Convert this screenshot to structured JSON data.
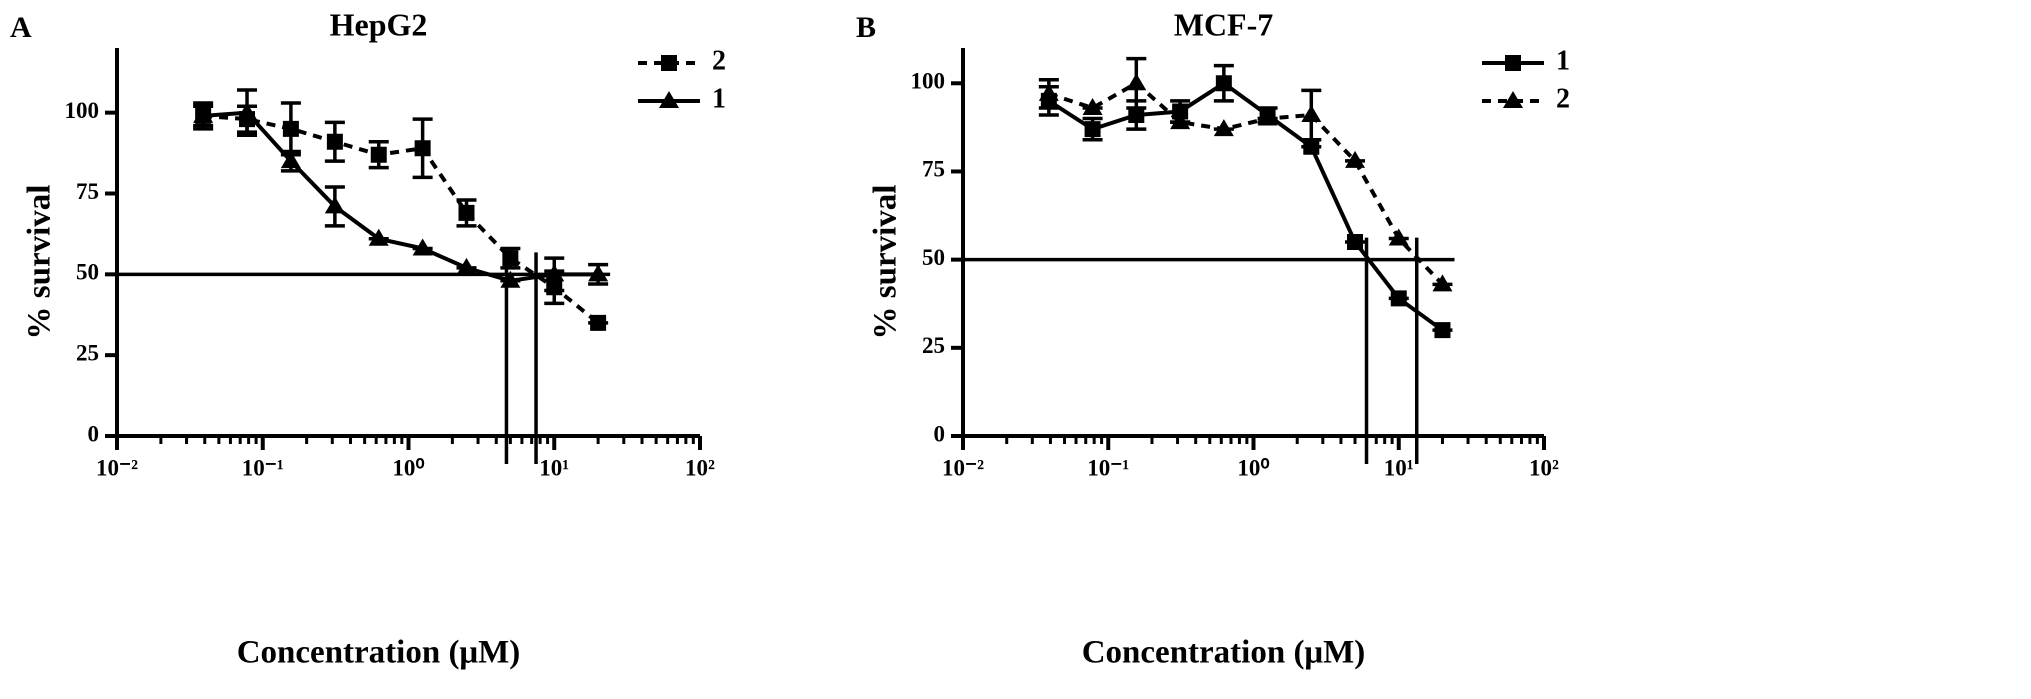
{
  "chart_data": [
    {
      "type": "line",
      "panel": "A",
      "title": "HepG2",
      "xlabel": "Concentration (μM)",
      "ylabel": "% survival",
      "log_x": true,
      "xlim": [
        0.01,
        100
      ],
      "ylim": [
        0,
        120
      ],
      "xticks": [
        {
          "value": 0.01,
          "label": "10⁻²"
        },
        {
          "value": 0.1,
          "label": "10⁻¹"
        },
        {
          "value": 1,
          "label": "10⁰"
        },
        {
          "value": 10,
          "label": "10¹"
        },
        {
          "value": 100,
          "label": "10²"
        }
      ],
      "yticks": [
        0,
        25,
        50,
        75,
        100
      ],
      "legend": "upper right",
      "x": [
        0.039,
        0.078,
        0.156,
        0.3125,
        0.625,
        1.25,
        2.5,
        5,
        10,
        20
      ],
      "series": [
        {
          "name": "2",
          "color": "#000000",
          "dashed": true,
          "marker": "square",
          "values": [
            99,
            98,
            95,
            91,
            87,
            89,
            69,
            55,
            46,
            35
          ],
          "errors": [
            4,
            4,
            8,
            6,
            4,
            9,
            4,
            3,
            5,
            0
          ]
        },
        {
          "name": "1",
          "color": "#000000",
          "dashed": false,
          "marker": "triangle",
          "values": [
            99,
            100,
            85,
            71,
            61,
            58,
            52,
            48,
            50,
            50
          ],
          "errors": [
            3,
            7,
            3,
            6,
            0,
            0,
            0,
            0,
            5,
            3
          ]
        }
      ],
      "reference_lines": {
        "y": 50,
        "x": [
          4.7,
          7.5
        ]
      }
    },
    {
      "type": "line",
      "panel": "B",
      "title": "MCF-7",
      "xlabel": "Concentration (μM)",
      "ylabel": "% survival",
      "log_x": true,
      "xlim": [
        0.01,
        100
      ],
      "ylim": [
        0,
        110
      ],
      "xticks": [
        {
          "value": 0.01,
          "label": "10⁻²"
        },
        {
          "value": 0.1,
          "label": "10⁻¹"
        },
        {
          "value": 1,
          "label": "10⁰"
        },
        {
          "value": 10,
          "label": "10¹"
        },
        {
          "value": 100,
          "label": "10²"
        }
      ],
      "yticks": [
        0,
        25,
        50,
        75,
        100
      ],
      "legend": "upper right",
      "x": [
        0.039,
        0.078,
        0.156,
        0.3125,
        0.625,
        1.25,
        2.5,
        5,
        10,
        20
      ],
      "series": [
        {
          "name": "1",
          "color": "#000000",
          "dashed": false,
          "marker": "square",
          "values": [
            95,
            87,
            91,
            92,
            100,
            91,
            82,
            55,
            39,
            30
          ],
          "errors": [
            4,
            3,
            4,
            3,
            5,
            2,
            0,
            0,
            0,
            0
          ]
        },
        {
          "name": "2",
          "color": "#000000",
          "dashed": true,
          "marker": "triangle",
          "values": [
            97,
            93,
            100,
            89,
            87,
            90,
            91,
            78,
            56,
            43
          ],
          "errors": [
            4,
            0,
            7,
            0,
            0,
            0,
            7,
            0,
            0,
            0
          ]
        }
      ],
      "reference_lines": {
        "y": 50,
        "x": [
          6.0,
          13.3
        ]
      }
    }
  ]
}
